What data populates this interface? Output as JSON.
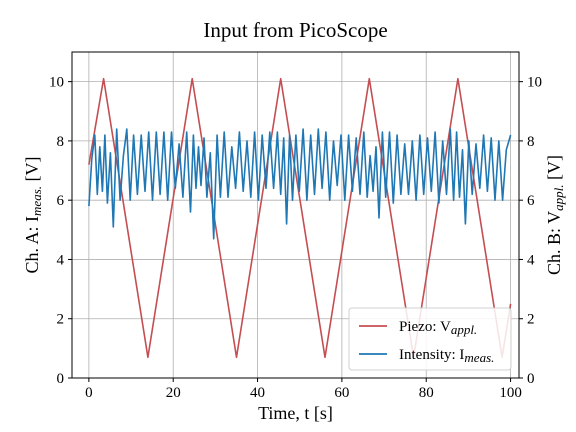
{
  "chart_data": {
    "type": "line",
    "title": "Input from PicoScope",
    "xlabel": {
      "main": "Time, t [s]"
    },
    "ylabel_left": {
      "prefix": "Ch. A: I",
      "sub": "meas.",
      "suffix": "  [V]"
    },
    "ylabel_right": {
      "prefix": "Ch. B: V",
      "sub": "appl.",
      "suffix": "  [V]"
    },
    "xlim": [
      -4,
      102
    ],
    "ylim": [
      0,
      11
    ],
    "xticks": [
      0,
      20,
      40,
      60,
      80,
      100
    ],
    "yticks": [
      0,
      2,
      4,
      6,
      8,
      10
    ],
    "grid": true,
    "legend_position": "lower-right",
    "series": [
      {
        "name": {
          "prefix": "Piezo: V",
          "sub": "appl."
        },
        "color": "#c44e52",
        "axis": "right",
        "x": [
          0,
          3.5,
          14,
          24.5,
          35,
          45.5,
          56,
          66.5,
          77,
          87.5,
          98,
          100
        ],
        "y": [
          7.2,
          10.1,
          0.7,
          10.1,
          0.7,
          10.1,
          0.7,
          10.1,
          0.7,
          10.1,
          0.7,
          2.5
        ]
      },
      {
        "name": {
          "prefix": "Intensity: I",
          "sub": "meas."
        },
        "color": "#1f77b4",
        "axis": "left",
        "x": [
          0,
          0.7,
          1.4,
          2.0,
          2.6,
          3.2,
          3.8,
          4.4,
          5.1,
          5.8,
          6.6,
          7.4,
          8.2,
          9.0,
          9.8,
          10.6,
          11.5,
          12.4,
          13.3,
          14.2,
          15.1,
          16.0,
          16.9,
          17.8,
          18.7,
          19.6,
          20.5,
          21.4,
          22.3,
          23.2,
          24.1,
          24.8,
          25.4,
          26.0,
          26.6,
          27.3,
          28.0,
          28.8,
          29.6,
          30.4,
          31.2,
          32.1,
          33.0,
          33.9,
          34.8,
          35.7,
          36.6,
          37.5,
          38.4,
          39.3,
          40.2,
          41.1,
          42.0,
          42.9,
          43.8,
          44.7,
          45.5,
          46.2,
          46.9,
          47.6,
          48.3,
          49.1,
          49.9,
          50.8,
          51.7,
          52.6,
          53.5,
          54.4,
          55.3,
          56.2,
          57.1,
          58.0,
          58.9,
          59.8,
          60.7,
          61.6,
          62.5,
          63.4,
          64.3,
          65.2,
          66.0,
          66.7,
          67.4,
          68.1,
          68.8,
          69.6,
          70.4,
          71.3,
          72.2,
          73.1,
          74.0,
          74.9,
          75.8,
          76.7,
          77.6,
          78.5,
          79.4,
          80.3,
          81.2,
          82.1,
          83.0,
          83.9,
          84.8,
          85.7,
          86.5,
          87.2,
          87.9,
          88.6,
          89.3,
          90.1,
          90.9,
          91.8,
          92.7,
          93.6,
          94.5,
          95.4,
          96.3,
          97.2,
          98.1,
          99.0,
          100
        ],
        "y": [
          5.8,
          7.4,
          8.2,
          6.2,
          7.8,
          6.3,
          8.2,
          5.9,
          7.6,
          5.1,
          8.4,
          6.0,
          7.5,
          8.4,
          6.0,
          8.2,
          6.2,
          8.2,
          6.3,
          8.3,
          6.0,
          8.3,
          6.2,
          8.3,
          6.0,
          8.3,
          6.4,
          7.9,
          6.1,
          8.3,
          5.6,
          8.2,
          6.4,
          7.8,
          6.5,
          8.1,
          6.1,
          7.6,
          4.7,
          8.2,
          6.1,
          8.3,
          6.1,
          7.8,
          6.4,
          8.3,
          6.3,
          8.0,
          6.1,
          8.3,
          6.0,
          8.2,
          6.4,
          8.3,
          6.4,
          8.3,
          6.2,
          8.1,
          5.2,
          8.2,
          6.0,
          8.2,
          6.3,
          8.4,
          6.0,
          8.2,
          6.2,
          8.4,
          6.4,
          8.3,
          6.0,
          8.0,
          6.5,
          8.2,
          6.0,
          8.2,
          6.3,
          8.1,
          6.2,
          8.3,
          6.1,
          7.5,
          6.3,
          7.8,
          5.4,
          8.3,
          6.1,
          8.3,
          5.9,
          8.2,
          6.2,
          7.9,
          6.2,
          8.0,
          6.0,
          8.2,
          6.2,
          8.1,
          6.3,
          8.3,
          5.9,
          8.0,
          6.2,
          8.4,
          6.0,
          8.3,
          6.1,
          7.7,
          5.2,
          8.0,
          6.2,
          7.9,
          6.4,
          8.2,
          6.3,
          8.1,
          6.0,
          8.0,
          6.0,
          7.7,
          8.2
        ]
      }
    ]
  }
}
